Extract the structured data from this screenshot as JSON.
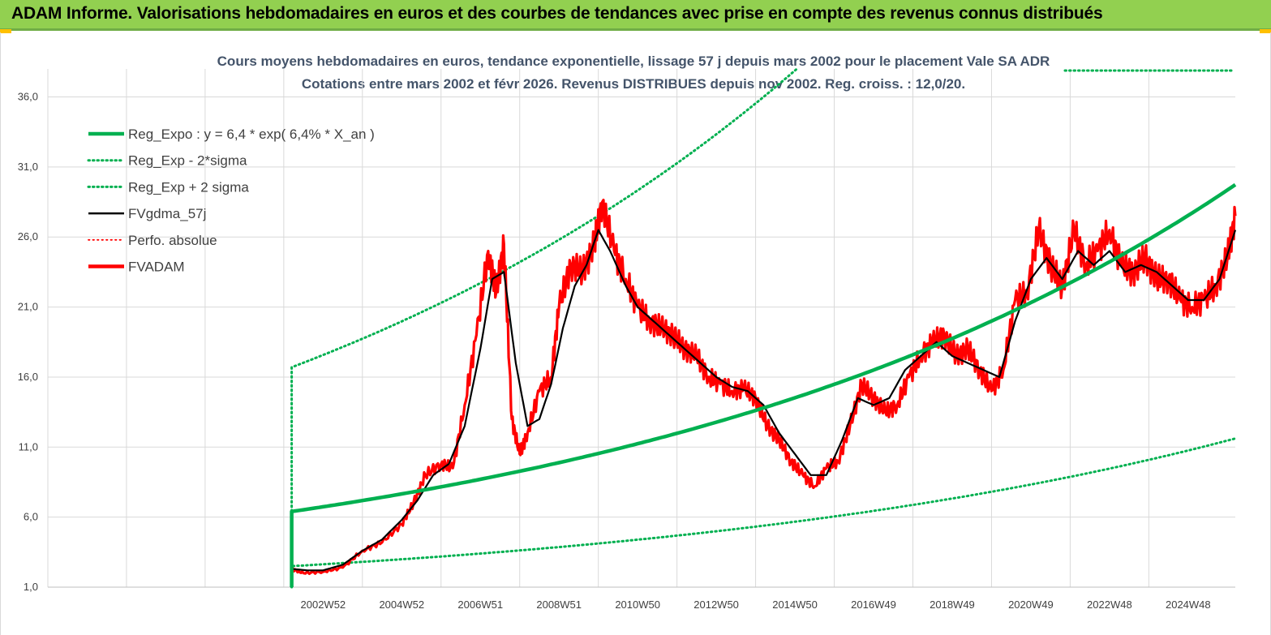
{
  "header": {
    "title": "ADAM Informe. Valorisations hebdomadaires en euros et des courbes de tendances avec prise en compte des revenus connus distribués"
  },
  "colors": {
    "header_bg": "#92d050",
    "reg_expo": "#00b050",
    "sigma_lines": "#00b050",
    "fvgdma": "#000000",
    "perfo": "#ff0000",
    "fvadam": "#ff0000"
  },
  "chart_data": {
    "type": "line",
    "title": "Cours moyens hebdomadaires en euros, tendance exponentielle, lissage 57 j depuis mars 2002 pour le placement Vale SA ADR",
    "subtitle": "Cotations entre mars 2002 et févr 2026. Revenus DISTRIBUES depuis nov 2002. Reg. croiss. : 12,0/20.",
    "ylim": [
      1,
      38
    ],
    "y_ticks": [
      "1,0",
      "6,0",
      "11,0",
      "16,0",
      "21,0",
      "26,0",
      "31,0",
      "36,0"
    ],
    "x_ticks": [
      "2002W52",
      "2004W52",
      "2006W51",
      "2008W51",
      "2010W50",
      "2012W50",
      "2014W50",
      "2016W49",
      "2018W49",
      "2020W49",
      "2022W48",
      "2024W48"
    ],
    "x_range_years": [
      1996.0,
      2026.2
    ],
    "grid": true,
    "legend_position": "top-left",
    "legend": [
      {
        "label": "Reg_Expo : y = 6,4 * exp( 6,4% *  X_an )",
        "style": "solid-thick",
        "color": "#00b050"
      },
      {
        "label": "Reg_Exp - 2*sigma",
        "style": "dotted",
        "color": "#00b050"
      },
      {
        "label": "Reg_Exp + 2 sigma",
        "style": "dotted",
        "color": "#00b050"
      },
      {
        "label": "FVgdma_57j",
        "style": "solid",
        "color": "#000000"
      },
      {
        "label": "Perfo. absolue",
        "style": "dotted",
        "color": "#ff0000"
      },
      {
        "label": "FVADAM",
        "style": "solid-thick",
        "color": "#ff0000"
      }
    ],
    "series": [
      {
        "name": "Reg_Expo : y = 6,4 * exp( 6,4% *  X_an )",
        "kind": "exp",
        "a": 6.4,
        "b": 0.064,
        "start": 2002.2,
        "end": 2026.2
      },
      {
        "name": "Reg_Exp - 2*sigma",
        "kind": "exp",
        "a": 2.5,
        "b": 0.064,
        "start": 2002.2,
        "end": 2026.2
      },
      {
        "name": "Reg_Exp + 2 sigma",
        "kind": "exp",
        "a": 16.7,
        "b": 0.064,
        "start": 2002.2,
        "end": 2026.2
      },
      {
        "name": "FVADAM",
        "x": [
          2002.2,
          2002.5,
          2003.0,
          2003.5,
          2004.0,
          2004.5,
          2005.0,
          2005.3,
          2005.6,
          2006.0,
          2006.3,
          2006.6,
          2006.9,
          2007.2,
          2007.4,
          2007.6,
          2007.8,
          2008.0,
          2008.2,
          2008.5,
          2008.8,
          2009.0,
          2009.3,
          2009.6,
          2009.9,
          2010.1,
          2010.4,
          2010.7,
          2011.0,
          2011.3,
          2011.6,
          2011.9,
          2012.2,
          2012.5,
          2012.8,
          2013.1,
          2013.4,
          2013.7,
          2014.0,
          2014.3,
          2014.6,
          2014.9,
          2015.2,
          2015.5,
          2015.8,
          2016.1,
          2016.4,
          2016.7,
          2017.0,
          2017.3,
          2017.6,
          2017.9,
          2018.2,
          2018.5,
          2018.8,
          2019.1,
          2019.4,
          2019.7,
          2020.0,
          2020.3,
          2020.6,
          2020.9,
          2021.2,
          2021.5,
          2021.8,
          2022.1,
          2022.4,
          2022.7,
          2023.0,
          2023.3,
          2023.6,
          2023.9,
          2024.2,
          2024.5,
          2024.8,
          2025.1,
          2025.4,
          2025.7,
          2026.0,
          2026.2
        ],
        "y": [
          2.3,
          2.0,
          2.1,
          2.4,
          3.6,
          4.2,
          5.5,
          7.0,
          9.0,
          9.8,
          9.5,
          14.0,
          19.0,
          25.0,
          22.0,
          25.5,
          13.0,
          10.5,
          12.0,
          15.0,
          16.0,
          21.0,
          24.0,
          23.5,
          25.5,
          28.5,
          25.0,
          23.0,
          21.0,
          20.0,
          19.5,
          19.0,
          18.0,
          17.5,
          16.0,
          15.5,
          15.0,
          15.2,
          14.5,
          12.5,
          11.5,
          10.0,
          9.0,
          8.2,
          9.5,
          10.0,
          12.5,
          15.5,
          14.5,
          13.5,
          14.0,
          16.0,
          17.5,
          18.5,
          19.0,
          17.5,
          18.0,
          16.5,
          15.0,
          16.5,
          21.5,
          22.0,
          26.5,
          24.0,
          22.5,
          26.5,
          24.0,
          25.0,
          26.5,
          24.0,
          23.5,
          24.5,
          23.0,
          23.0,
          21.5,
          21.0,
          21.5,
          22.5,
          24.5,
          27.5
        ]
      },
      {
        "name": "FVgdma_57j",
        "x": [
          2002.2,
          2002.6,
          2003.0,
          2003.5,
          2004.0,
          2004.5,
          2005.0,
          2005.4,
          2005.8,
          2006.2,
          2006.6,
          2007.0,
          2007.3,
          2007.6,
          2007.9,
          2008.2,
          2008.5,
          2008.8,
          2009.1,
          2009.4,
          2009.7,
          2010.0,
          2010.3,
          2010.7,
          2011.0,
          2011.4,
          2011.8,
          2012.2,
          2012.6,
          2013.0,
          2013.4,
          2013.8,
          2014.2,
          2014.6,
          2015.0,
          2015.4,
          2015.8,
          2016.2,
          2016.6,
          2017.0,
          2017.4,
          2017.8,
          2018.2,
          2018.6,
          2019.0,
          2019.4,
          2019.8,
          2020.2,
          2020.6,
          2021.0,
          2021.4,
          2021.8,
          2022.2,
          2022.6,
          2023.0,
          2023.4,
          2023.8,
          2024.2,
          2024.6,
          2025.0,
          2025.4,
          2025.8,
          2026.2
        ],
        "y": [
          2.3,
          2.2,
          2.2,
          2.6,
          3.6,
          4.4,
          5.8,
          7.2,
          9.0,
          9.8,
          12.5,
          18.0,
          23.0,
          23.5,
          17.0,
          12.5,
          13.0,
          15.5,
          19.5,
          22.5,
          24.0,
          26.5,
          25.0,
          22.5,
          21.0,
          20.0,
          19.0,
          18.0,
          17.0,
          16.0,
          15.3,
          15.0,
          14.0,
          12.0,
          10.5,
          9.0,
          9.0,
          11.5,
          14.5,
          14.0,
          14.5,
          16.5,
          17.5,
          18.5,
          17.5,
          17.0,
          16.5,
          16.0,
          20.0,
          23.0,
          24.5,
          23.0,
          25.0,
          24.0,
          25.0,
          23.5,
          24.0,
          23.5,
          22.5,
          21.5,
          21.5,
          23.0,
          26.5
        ]
      }
    ]
  }
}
